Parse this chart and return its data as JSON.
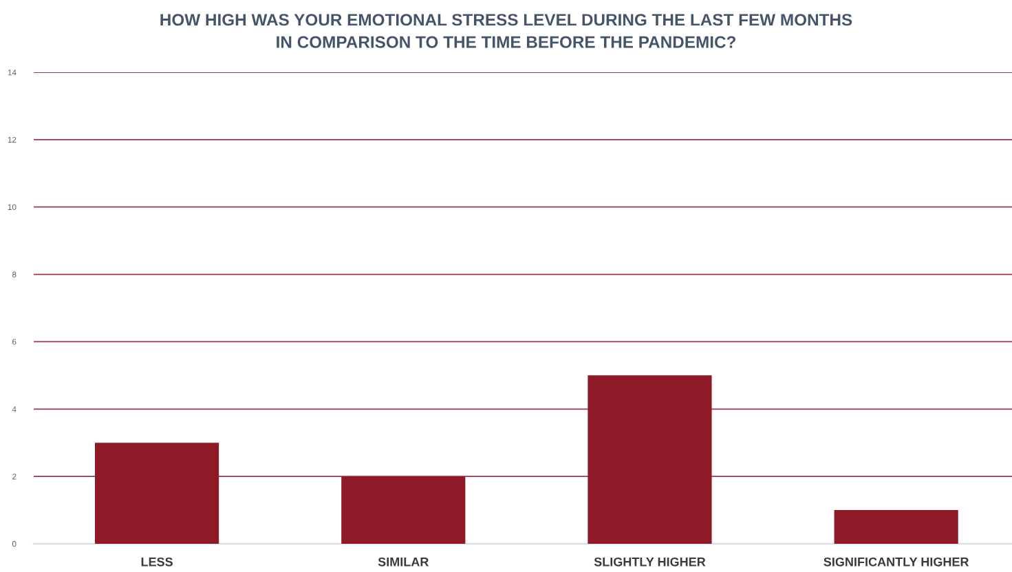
{
  "chart_data": {
    "type": "bar",
    "title": "HOW HIGH WAS YOUR EMOTIONAL STRESS LEVEL DURING THE LAST FEW MONTHS\nIN COMPARISON TO THE TIME BEFORE THE PANDEMIC?",
    "categories": [
      "LESS",
      "SIMILAR",
      "SLIGHTLY HIGHER",
      "SIGNIFICANTLY HIGHER"
    ],
    "values": [
      3,
      2,
      5,
      1
    ],
    "color": "#8e1a27",
    "ylim": [
      0,
      14
    ],
    "yticks": [
      0,
      2,
      4,
      6,
      8,
      10,
      12,
      14
    ],
    "grid": "y"
  }
}
